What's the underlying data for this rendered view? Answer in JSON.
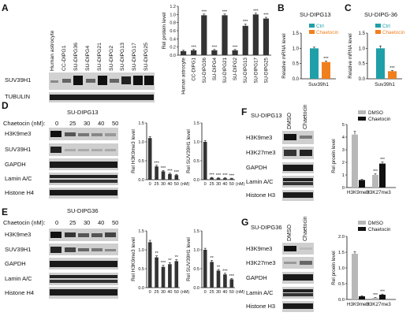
{
  "panels": {
    "A": {
      "letter": "A",
      "lanes": [
        "Human astrocyte",
        "CC-DIPG1",
        "SU-DIPG36",
        "SU-DIPG4",
        "SU-DIPG21",
        "SU-DIPG2",
        "SU-DIPG13",
        "SU-DIPG17",
        "SU-DIPG25"
      ],
      "rows": [
        "SUV39H1",
        "TUBULIN"
      ]
    },
    "B": {
      "letter": "B",
      "title": "SU-DIPG13"
    },
    "C": {
      "letter": "C",
      "title": "SU-DIPG-36"
    },
    "D": {
      "letter": "D",
      "title": "SU-DIPG13",
      "dose_label": "Chaetocin (nM):",
      "doses": [
        "0",
        "25",
        "30",
        "40",
        "50"
      ],
      "rows": [
        "H3K9me3",
        "SUV39H1",
        "GAPDH",
        "Lamin A/C",
        "Histone H4"
      ]
    },
    "E": {
      "letter": "E",
      "title": "SU-DIPG36",
      "dose_label": "Chaetocin (nM):",
      "doses": [
        "0",
        "25",
        "30",
        "40",
        "50"
      ],
      "rows": [
        "H3K9me3",
        "SUV39H1",
        "GAPDH",
        "Lamin A/C",
        "Histone H4"
      ]
    },
    "F": {
      "letter": "F",
      "title": "SU-DIPG13",
      "lanes": [
        "DMSO",
        "Chaetocin"
      ],
      "rows": [
        "H3K9me3",
        "H3K27me3",
        "GAPDH",
        "Lamin A/C",
        "Histone H3"
      ]
    },
    "G": {
      "letter": "G",
      "title": "SU-DIPG36",
      "lanes": [
        "DMSO",
        "Chaetocin"
      ],
      "rows": [
        "H3K9me3",
        "H3K27me3",
        "GAPDH",
        "Lamin A/C",
        "Histone H3"
      ]
    }
  },
  "colors": {
    "ctrl": "#1f9fa8",
    "chaetocin_orange": "#f07f1d",
    "dmso_gray": "#b8b8b8",
    "chaetocin_black": "#111111",
    "dark_bar": "#333333"
  },
  "chart_data": [
    {
      "id": "A-chart",
      "type": "bar",
      "ylabel": "Rel protein level",
      "ylim": [
        0,
        1.2
      ],
      "yticks": [
        "0.0",
        "0.2",
        "0.4",
        "0.6",
        "0.8",
        "1.0",
        "1.2"
      ],
      "categories": [
        "Human astrocyte",
        "CC-DIPG1",
        "SU-DIPG36",
        "SU-DIPG4",
        "SU-DIPG21",
        "SU-DIPG2",
        "SU-DIPG13",
        "SU-DIPG17",
        "SU-DIPG25"
      ],
      "values": [
        0.1,
        0.12,
        0.98,
        0.12,
        0.98,
        0.12,
        0.72,
        1.0,
        0.9
      ],
      "errors": [
        0.02,
        0.02,
        0.03,
        0.02,
        0.03,
        0.02,
        0.04,
        0.03,
        0.03
      ],
      "annotations": [
        "",
        "***",
        "***",
        "***",
        "***",
        "***",
        "***",
        "***",
        "***"
      ]
    },
    {
      "id": "B-chart",
      "type": "bar",
      "ylabel": "Relative mRNA level",
      "ylim": [
        0,
        1.5
      ],
      "yticks": [
        "0.0",
        "0.5",
        "1.0",
        "1.5"
      ],
      "xlabel": "Suv39h1",
      "series": [
        {
          "name": "Ctrl",
          "values": [
            1.0
          ]
        },
        {
          "name": "Chaetocin",
          "values": [
            0.55
          ]
        }
      ],
      "errors": [
        0.04,
        0.03
      ],
      "annotations": [
        "",
        "***"
      ]
    },
    {
      "id": "C-chart",
      "type": "bar",
      "ylabel": "Relative mRNA level",
      "ylim": [
        0,
        1.5
      ],
      "yticks": [
        "0.0",
        "0.5",
        "1.0",
        "1.5"
      ],
      "xlabel": "Suv39h1",
      "series": [
        {
          "name": "Ctrl",
          "values": [
            1.0
          ]
        },
        {
          "name": "Chaetocin",
          "values": [
            0.25
          ]
        }
      ],
      "errors": [
        0.08,
        0.02
      ],
      "annotations": [
        "",
        "***"
      ]
    },
    {
      "id": "D-chart1",
      "type": "bar",
      "ylabel": "Rel H3K9me3 level",
      "ylim": [
        0,
        1.5
      ],
      "yticks": [
        "0.0",
        "0.5",
        "1.0",
        "1.5"
      ],
      "categories": [
        "0",
        "25",
        "30",
        "40",
        "50"
      ],
      "xunit": "(nM)",
      "values": [
        1.1,
        0.35,
        0.22,
        0.15,
        0.12
      ],
      "errors": [
        0.04,
        0.03,
        0.02,
        0.02,
        0.02
      ],
      "annotations": [
        "",
        "***",
        "***",
        "***",
        "***"
      ]
    },
    {
      "id": "D-chart2",
      "type": "bar",
      "ylabel": "Rel SUV39H1 level",
      "ylim": [
        0,
        1.5
      ],
      "yticks": [
        "0.0",
        "0.5",
        "1.0",
        "1.5"
      ],
      "categories": [
        "0",
        "25",
        "30",
        "40",
        "50"
      ],
      "xunit": "(nM)",
      "values": [
        1.0,
        0.05,
        0.04,
        0.04,
        0.03
      ],
      "errors": [
        0.03,
        0.01,
        0.01,
        0.01,
        0.01
      ],
      "annotations": [
        "",
        "***",
        "***",
        "***",
        "***"
      ]
    },
    {
      "id": "E-chart1",
      "type": "bar",
      "ylabel": "Rel H3K9me3 level",
      "ylim": [
        0,
        1.5
      ],
      "yticks": [
        "0.0",
        "0.5",
        "1.0",
        "1.5"
      ],
      "categories": [
        "0",
        "25",
        "30",
        "40",
        "50"
      ],
      "xunit": "(nM)",
      "values": [
        1.2,
        0.8,
        0.55,
        0.62,
        0.7
      ],
      "errors": [
        0.05,
        0.04,
        0.04,
        0.04,
        0.04
      ],
      "annotations": [
        "",
        "**",
        "***",
        "**",
        "**"
      ]
    },
    {
      "id": "E-chart2",
      "type": "bar",
      "ylabel": "Rel SUV39H1 level",
      "ylim": [
        0,
        1.5
      ],
      "yticks": [
        "0.0",
        "0.5",
        "1.0",
        "1.5"
      ],
      "categories": [
        "0",
        "25",
        "30",
        "40",
        "50"
      ],
      "xunit": "(nM)",
      "values": [
        1.0,
        0.68,
        0.45,
        0.35,
        0.22
      ],
      "errors": [
        0.04,
        0.04,
        0.03,
        0.03,
        0.02
      ],
      "annotations": [
        "",
        "**",
        "**",
        "***",
        "***"
      ]
    },
    {
      "id": "F-chart",
      "type": "bar",
      "ylabel": "Rel proein level",
      "ylim": [
        0,
        5
      ],
      "yticks": [
        "0",
        "1",
        "2",
        "3",
        "4",
        "5"
      ],
      "categories": [
        "H3K9me3",
        "H3K27me3"
      ],
      "series": [
        {
          "name": "DMSO",
          "values": [
            4.2,
            1.0
          ]
        },
        {
          "name": "Chaetocin",
          "values": [
            0.6,
            1.9
          ]
        }
      ],
      "errors": [
        [
          0.25,
          0.08
        ],
        [
          0.05,
          0.12
        ]
      ],
      "annotations": [
        [
          "",
          "***"
        ],
        [
          "",
          "***"
        ]
      ]
    },
    {
      "id": "G-chart",
      "type": "bar",
      "ylabel": "Rel proein level",
      "ylim": [
        0,
        2.0
      ],
      "yticks": [
        "0.0",
        "0.5",
        "1.0",
        "1.5",
        "2.0"
      ],
      "categories": [
        "H3K9me3",
        "H3K27me3"
      ],
      "series": [
        {
          "name": "DMSO",
          "values": [
            1.45,
            0.05
          ]
        },
        {
          "name": "Chaetocin",
          "values": [
            0.1,
            0.15
          ]
        }
      ],
      "errors": [
        [
          0.06,
          0.01
        ],
        [
          0.02,
          0.02
        ]
      ],
      "annotations": [
        [
          "",
          "***"
        ],
        [
          "",
          "***"
        ]
      ]
    }
  ]
}
